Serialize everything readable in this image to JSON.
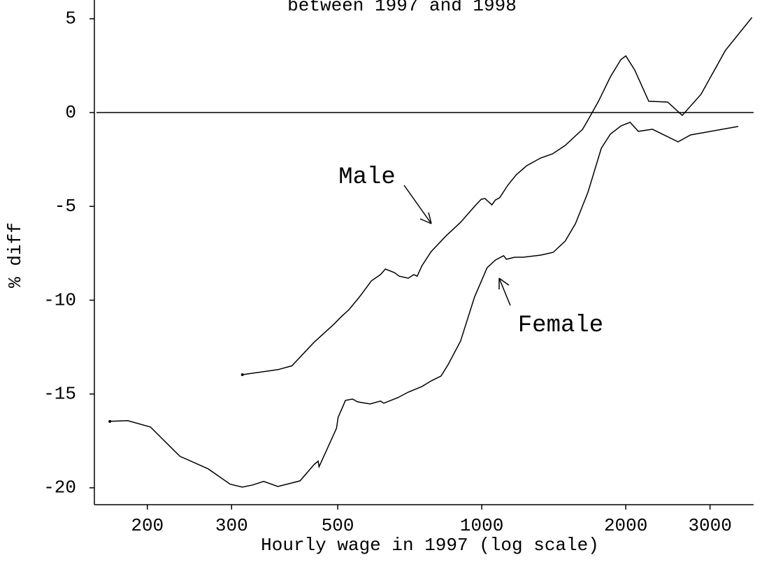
{
  "chart_data": {
    "type": "line",
    "title": "between 1997 and 1998",
    "xlabel": "Hourly wage in 1997 (log scale)",
    "ylabel": "% diff",
    "xscale": "log",
    "xlim": [
      155,
      3700
    ],
    "ylim": [
      -20.9,
      6
    ],
    "xticks": [
      200,
      300,
      500,
      1000,
      2000,
      3000
    ],
    "yticks": [
      -20,
      -15,
      -10,
      -5,
      0,
      5
    ],
    "hline": 0,
    "color": "#000000",
    "series": [
      {
        "name": "Male",
        "x": [
          316,
          375,
          401,
          446,
          490,
          510,
          528,
          555,
          588,
          614,
          629,
          657,
          672,
          702,
          721,
          733,
          750,
          784,
          844,
          903,
          972,
          998,
          1016,
          1050,
          1068,
          1090,
          1134,
          1181,
          1242,
          1328,
          1406,
          1494,
          1625,
          1679,
          1754,
          1857,
          1954,
          2000,
          2088,
          2234,
          2446,
          2624,
          2872,
          3230,
          3670
        ],
        "values": [
          -13.97,
          -13.7,
          -13.5,
          -12.25,
          -11.3,
          -10.85,
          -10.5,
          -9.83,
          -8.97,
          -8.64,
          -8.34,
          -8.53,
          -8.72,
          -8.83,
          -8.64,
          -8.72,
          -8.16,
          -7.41,
          -6.55,
          -5.85,
          -4.92,
          -4.62,
          -4.58,
          -4.92,
          -4.66,
          -4.54,
          -3.87,
          -3.31,
          -2.83,
          -2.42,
          -2.2,
          -1.75,
          -0.89,
          -0.26,
          0.6,
          1.9,
          2.83,
          3.02,
          2.27,
          0.6,
          0.56,
          -0.15,
          0.97,
          3.31,
          5.07
        ]
      },
      {
        "name": "Female",
        "x": [
          167,
          182,
          203,
          234,
          268,
          298,
          316,
          332,
          350,
          375,
          417,
          446,
          455,
          457,
          497,
          501,
          519,
          537,
          550,
          584,
          614,
          624,
          667,
          702,
          750,
          784,
          822,
          850,
          903,
          966,
          1026,
          1068,
          1111,
          1126,
          1172,
          1221,
          1328,
          1410,
          1494,
          1570,
          1667,
          1778,
          1857,
          1954,
          2042,
          2125,
          2274,
          2572,
          2733,
          3436
        ],
        "values": [
          -16.46,
          -16.42,
          -16.76,
          -18.32,
          -18.99,
          -19.81,
          -19.96,
          -19.85,
          -19.66,
          -19.93,
          -19.63,
          -18.77,
          -18.58,
          -18.88,
          -16.83,
          -16.24,
          -15.34,
          -15.27,
          -15.42,
          -15.53,
          -15.38,
          -15.49,
          -15.2,
          -14.9,
          -14.6,
          -14.3,
          -14.04,
          -13.45,
          -12.18,
          -9.83,
          -8.27,
          -7.86,
          -7.63,
          -7.82,
          -7.71,
          -7.71,
          -7.6,
          -7.45,
          -6.85,
          -5.92,
          -4.25,
          -1.9,
          -1.15,
          -0.71,
          -0.52,
          -1.0,
          -0.89,
          -1.56,
          -1.19,
          -0.74
        ]
      }
    ]
  }
}
